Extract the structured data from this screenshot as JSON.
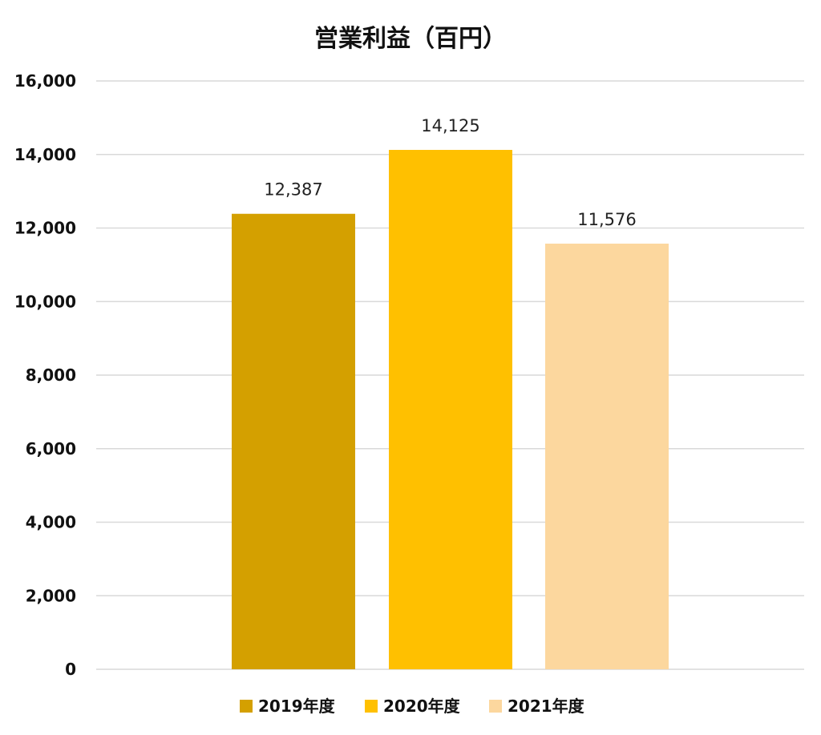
{
  "chart_data": {
    "type": "bar",
    "title": "営業利益（百円）",
    "categories": [
      "2019年度",
      "2020年度",
      "2021年度"
    ],
    "values": [
      12387,
      14125,
      11576
    ],
    "data_labels": [
      "12,387",
      "14,125",
      "11,576"
    ],
    "colors": [
      "#D4A000",
      "#FFC000",
      "#FCD79E"
    ],
    "ylim": [
      0,
      16000
    ],
    "yticks": [
      0,
      2000,
      4000,
      6000,
      8000,
      10000,
      12000,
      14000,
      16000
    ],
    "ytick_labels": [
      "0",
      "2,000",
      "4,000",
      "6,000",
      "8,000",
      "10,000",
      "12,000",
      "14,000",
      "16,000"
    ],
    "grid": true,
    "legend": {
      "position": "bottom",
      "entries": [
        "2019年度",
        "2020年度",
        "2021年度"
      ]
    },
    "xlabel": "",
    "ylabel": ""
  }
}
